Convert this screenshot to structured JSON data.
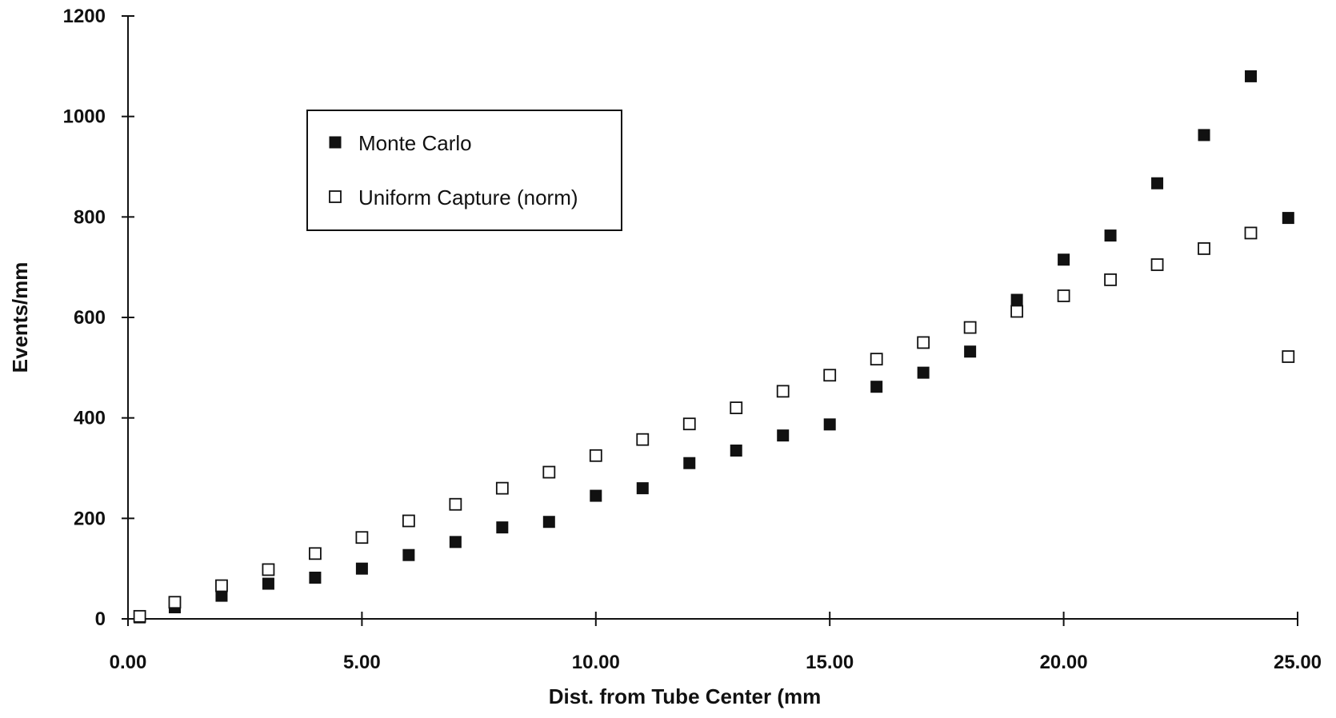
{
  "chart_data": {
    "type": "scatter",
    "title": "",
    "xlabel": "Dist. from Tube Center (mm",
    "ylabel": "Events/mm",
    "xlim": [
      0,
      25
    ],
    "ylim": [
      0,
      1200
    ],
    "xticks": [
      0,
      5,
      10,
      15,
      20,
      25
    ],
    "xtick_labels": [
      "0.00",
      "5.00",
      "10.00",
      "15.00",
      "20.00",
      "25.00"
    ],
    "yticks": [
      0,
      200,
      400,
      600,
      800,
      1000,
      1200
    ],
    "ytick_labels": [
      "0",
      "200",
      "400",
      "600",
      "800",
      "1000",
      "1200"
    ],
    "grid": false,
    "legend_position": "top-left",
    "series": [
      {
        "name": "Monte Carlo",
        "marker": "filled-square",
        "color": "#111111",
        "x": [
          0.25,
          1,
          2,
          3,
          4,
          5,
          6,
          7,
          8,
          9,
          10,
          11,
          12,
          13,
          14,
          15,
          16,
          17,
          18,
          19,
          20,
          21,
          22,
          23,
          24,
          24.8
        ],
        "y": [
          3,
          23,
          46,
          70,
          82,
          100,
          127,
          153,
          182,
          193,
          245,
          260,
          310,
          335,
          365,
          387,
          462,
          490,
          532,
          635,
          715,
          763,
          867,
          963,
          1080,
          798
        ]
      },
      {
        "name": "Uniform Capture (norm)",
        "marker": "open-square",
        "color": "#111111",
        "x": [
          0.25,
          1,
          2,
          3,
          4,
          5,
          6,
          7,
          8,
          9,
          10,
          11,
          12,
          13,
          14,
          15,
          16,
          17,
          18,
          19,
          20,
          21,
          22,
          23,
          24,
          24.8
        ],
        "y": [
          5,
          33,
          66,
          98,
          130,
          162,
          195,
          228,
          260,
          292,
          325,
          357,
          388,
          420,
          453,
          485,
          517,
          550,
          580,
          612,
          643,
          675,
          705,
          737,
          768,
          522
        ]
      }
    ]
  }
}
